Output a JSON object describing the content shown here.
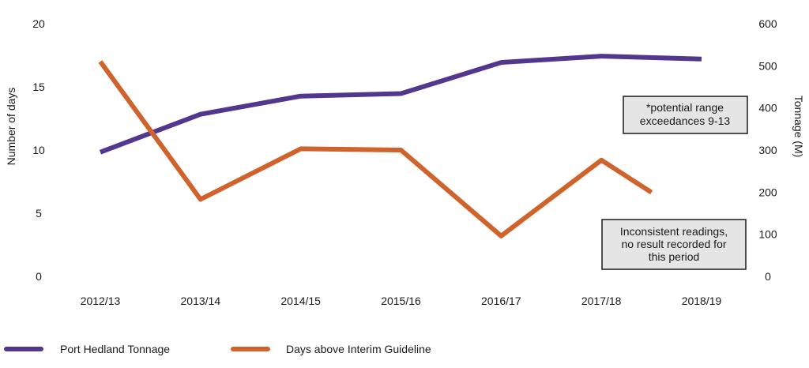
{
  "chart_data": {
    "type": "line",
    "title": "",
    "categories": [
      "2012/13",
      "2013/14",
      "2014/15",
      "2015/16",
      "2016/17",
      "2017/18",
      "2018/19"
    ],
    "y_left": {
      "label": "Number of days",
      "range": [
        0,
        20
      ],
      "ticks": [
        "0",
        "5",
        "10",
        "15",
        "20"
      ]
    },
    "y_right": {
      "label": "Tonnage (M)",
      "range": [
        0,
        600
      ],
      "ticks": [
        "0",
        "100",
        "200",
        "300",
        "400",
        "500",
        "600"
      ]
    },
    "grid": false,
    "legend_position": "bottom-left",
    "series": [
      {
        "name": "Port Hedland Tonnage",
        "axis": "right",
        "color": "#53378f",
        "values": [
          295,
          385,
          428,
          434,
          508,
          523,
          516
        ]
      },
      {
        "name": "Days above Interim Guideline",
        "axis": "left",
        "color": "#d0622b",
        "values": [
          17.0,
          6.1,
          10.1,
          10.0,
          3.2,
          9.2,
          null
        ],
        "partial_end": {
          "from_category": "2017/18",
          "toward_value": 4.1,
          "fraction": 0.5
        }
      }
    ],
    "annotations": [
      {
        "lines": [
          "*potential range",
          "exceedances 9-13"
        ]
      },
      {
        "lines": [
          "Inconsistent readings,",
          "no result recorded for",
          "this period"
        ]
      }
    ]
  }
}
